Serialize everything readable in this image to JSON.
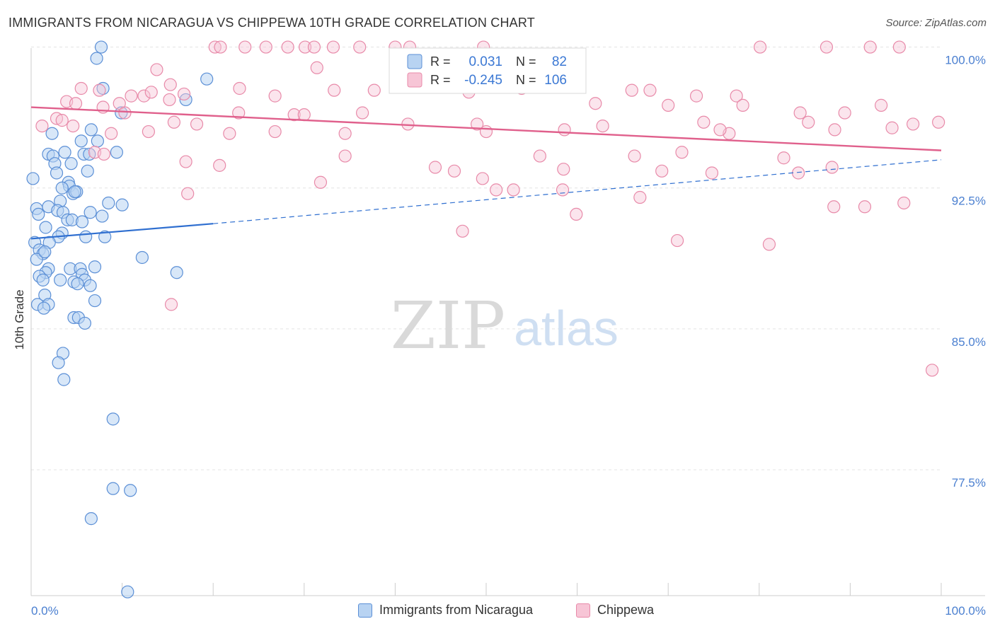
{
  "header": {
    "title": "IMMIGRANTS FROM NICARAGUA VS CHIPPEWA 10TH GRADE CORRELATION CHART",
    "source": "Source: ZipAtlas.com"
  },
  "watermark": {
    "zip": "ZIP",
    "atlas": "atlas"
  },
  "stats_legend": {
    "rows": [
      {
        "r_label": "R =",
        "r_value": "0.031",
        "n_label": "N =",
        "n_value": "82"
      },
      {
        "r_label": "R =",
        "r_value": "-0.245",
        "n_label": "N =",
        "n_value": "106"
      }
    ]
  },
  "bottom_legend": {
    "items": [
      {
        "label": "Immigrants from Nicaragua"
      },
      {
        "label": "Chippewa"
      }
    ]
  },
  "colors": {
    "blue_fill": "#b8d3f2",
    "blue_stroke": "#5b8fd6",
    "blue_line": "#2f6fd0",
    "pink_fill": "#f7c5d6",
    "pink_stroke": "#e88aa9",
    "pink_line": "#e0608c",
    "axis_text": "#4a7fd0",
    "grid": "#e4e4e4"
  },
  "chart_data": {
    "type": "scatter",
    "title": "IMMIGRANTS FROM NICARAGUA VS CHIPPEWA 10TH GRADE CORRELATION CHART",
    "xlabel": "",
    "ylabel": "10th Grade",
    "xlim": [
      0,
      100
    ],
    "ylim": [
      70.8,
      101.0
    ],
    "x_tick_labels": [
      "0.0%",
      "100.0%"
    ],
    "y_ticks": [
      100.0,
      92.5,
      85.0,
      77.5
    ],
    "y_tick_labels": [
      "100.0%",
      "92.5%",
      "85.0%",
      "77.5%"
    ],
    "grid": true,
    "legend_position": "bottom",
    "series": [
      {
        "name": "Immigrants from Nicaragua",
        "r": 0.031,
        "n": 82,
        "trend": {
          "x0": 0,
          "y0": 89.8,
          "x1": 20,
          "y1": 90.6,
          "x_end": 100,
          "y_end": 94.0
        },
        "points": [
          {
            "x": 7.7,
            "y": 100.0
          },
          {
            "x": 7.2,
            "y": 99.4
          },
          {
            "x": 19.3,
            "y": 98.3
          },
          {
            "x": 7.9,
            "y": 97.8
          },
          {
            "x": 17.0,
            "y": 97.2
          },
          {
            "x": 9.9,
            "y": 96.5
          },
          {
            "x": 2.3,
            "y": 95.4
          },
          {
            "x": 6.6,
            "y": 95.6
          },
          {
            "x": 5.5,
            "y": 95.0
          },
          {
            "x": 7.3,
            "y": 95.0
          },
          {
            "x": 1.9,
            "y": 94.3
          },
          {
            "x": 2.4,
            "y": 94.2
          },
          {
            "x": 3.7,
            "y": 94.4
          },
          {
            "x": 5.8,
            "y": 94.3
          },
          {
            "x": 6.4,
            "y": 94.3
          },
          {
            "x": 9.4,
            "y": 94.4
          },
          {
            "x": 2.6,
            "y": 93.8
          },
          {
            "x": 4.4,
            "y": 93.8
          },
          {
            "x": 2.8,
            "y": 93.3
          },
          {
            "x": 6.2,
            "y": 93.4
          },
          {
            "x": 0.2,
            "y": 93.0
          },
          {
            "x": 4.1,
            "y": 92.8
          },
          {
            "x": 4.2,
            "y": 92.6
          },
          {
            "x": 3.4,
            "y": 92.5
          },
          {
            "x": 4.6,
            "y": 92.2
          },
          {
            "x": 5.0,
            "y": 92.3
          },
          {
            "x": 3.2,
            "y": 91.8
          },
          {
            "x": 0.6,
            "y": 91.4
          },
          {
            "x": 1.9,
            "y": 91.5
          },
          {
            "x": 10.0,
            "y": 91.6
          },
          {
            "x": 8.5,
            "y": 91.7
          },
          {
            "x": 0.8,
            "y": 91.1
          },
          {
            "x": 2.9,
            "y": 91.3
          },
          {
            "x": 3.5,
            "y": 91.2
          },
          {
            "x": 6.5,
            "y": 91.2
          },
          {
            "x": 7.8,
            "y": 91.0
          },
          {
            "x": 4.0,
            "y": 90.8
          },
          {
            "x": 4.5,
            "y": 90.8
          },
          {
            "x": 5.6,
            "y": 90.7
          },
          {
            "x": 1.6,
            "y": 90.4
          },
          {
            "x": 3.4,
            "y": 90.1
          },
          {
            "x": 3.0,
            "y": 89.9
          },
          {
            "x": 0.4,
            "y": 89.6
          },
          {
            "x": 2.0,
            "y": 89.6
          },
          {
            "x": 0.9,
            "y": 89.2
          },
          {
            "x": 1.3,
            "y": 89.0
          },
          {
            "x": 12.2,
            "y": 88.8
          },
          {
            "x": 0.6,
            "y": 88.7
          },
          {
            "x": 7.0,
            "y": 88.3
          },
          {
            "x": 4.3,
            "y": 88.2
          },
          {
            "x": 5.4,
            "y": 88.2
          },
          {
            "x": 1.9,
            "y": 88.2
          },
          {
            "x": 1.6,
            "y": 88.0
          },
          {
            "x": 16.0,
            "y": 88.0
          },
          {
            "x": 0.9,
            "y": 87.8
          },
          {
            "x": 5.6,
            "y": 87.9
          },
          {
            "x": 1.3,
            "y": 87.6
          },
          {
            "x": 3.2,
            "y": 87.6
          },
          {
            "x": 4.7,
            "y": 87.5
          },
          {
            "x": 5.9,
            "y": 87.6
          },
          {
            "x": 5.1,
            "y": 87.4
          },
          {
            "x": 6.5,
            "y": 87.3
          },
          {
            "x": 1.5,
            "y": 86.8
          },
          {
            "x": 0.7,
            "y": 86.3
          },
          {
            "x": 1.9,
            "y": 86.3
          },
          {
            "x": 1.4,
            "y": 86.1
          },
          {
            "x": 4.7,
            "y": 85.6
          },
          {
            "x": 5.2,
            "y": 85.6
          },
          {
            "x": 5.9,
            "y": 85.3
          },
          {
            "x": 3.5,
            "y": 83.7
          },
          {
            "x": 3.0,
            "y": 83.2
          },
          {
            "x": 3.6,
            "y": 82.3
          },
          {
            "x": 9.0,
            "y": 80.2
          },
          {
            "x": 9.0,
            "y": 76.5
          },
          {
            "x": 10.9,
            "y": 76.4
          },
          {
            "x": 6.6,
            "y": 74.9
          },
          {
            "x": 10.6,
            "y": 71.0
          },
          {
            "x": 1.5,
            "y": 89.1
          },
          {
            "x": 4.8,
            "y": 92.3
          },
          {
            "x": 6.0,
            "y": 89.9
          },
          {
            "x": 8.1,
            "y": 89.9
          },
          {
            "x": 7.0,
            "y": 86.5
          }
        ]
      },
      {
        "name": "Chippewa",
        "r": -0.245,
        "n": 106,
        "trend": {
          "x0": 0,
          "y0": 96.8,
          "x1": 100,
          "y1": 94.5
        },
        "points": [
          {
            "x": 20.2,
            "y": 100.0
          },
          {
            "x": 20.8,
            "y": 100.0
          },
          {
            "x": 23.5,
            "y": 100.0
          },
          {
            "x": 25.8,
            "y": 100.0
          },
          {
            "x": 28.2,
            "y": 100.0
          },
          {
            "x": 30.1,
            "y": 100.0
          },
          {
            "x": 31.1,
            "y": 100.0
          },
          {
            "x": 33.2,
            "y": 100.0
          },
          {
            "x": 36.1,
            "y": 100.0
          },
          {
            "x": 40.0,
            "y": 100.0
          },
          {
            "x": 41.6,
            "y": 100.0
          },
          {
            "x": 49.7,
            "y": 100.0
          },
          {
            "x": 80.1,
            "y": 100.0
          },
          {
            "x": 87.4,
            "y": 100.0
          },
          {
            "x": 92.2,
            "y": 100.0
          },
          {
            "x": 95.4,
            "y": 100.0
          },
          {
            "x": 13.8,
            "y": 98.8
          },
          {
            "x": 31.4,
            "y": 98.9
          },
          {
            "x": 15.3,
            "y": 98.0
          },
          {
            "x": 5.5,
            "y": 97.8
          },
          {
            "x": 7.5,
            "y": 97.7
          },
          {
            "x": 22.9,
            "y": 97.8
          },
          {
            "x": 33.3,
            "y": 97.7
          },
          {
            "x": 37.7,
            "y": 97.7
          },
          {
            "x": 48.1,
            "y": 97.6
          },
          {
            "x": 53.9,
            "y": 97.8
          },
          {
            "x": 66.0,
            "y": 97.7
          },
          {
            "x": 68.0,
            "y": 97.7
          },
          {
            "x": 11.0,
            "y": 97.4
          },
          {
            "x": 12.4,
            "y": 97.4
          },
          {
            "x": 13.2,
            "y": 97.6
          },
          {
            "x": 16.8,
            "y": 97.5
          },
          {
            "x": 26.8,
            "y": 97.4
          },
          {
            "x": 73.1,
            "y": 97.4
          },
          {
            "x": 77.5,
            "y": 97.4
          },
          {
            "x": 3.9,
            "y": 97.1
          },
          {
            "x": 4.9,
            "y": 97.0
          },
          {
            "x": 9.7,
            "y": 97.0
          },
          {
            "x": 15.2,
            "y": 97.2
          },
          {
            "x": 62.0,
            "y": 97.0
          },
          {
            "x": 70.0,
            "y": 96.9
          },
          {
            "x": 78.2,
            "y": 96.9
          },
          {
            "x": 93.4,
            "y": 96.9
          },
          {
            "x": 7.9,
            "y": 96.8
          },
          {
            "x": 10.3,
            "y": 96.5
          },
          {
            "x": 28.9,
            "y": 96.4
          },
          {
            "x": 22.8,
            "y": 96.5
          },
          {
            "x": 30.0,
            "y": 96.4
          },
          {
            "x": 36.4,
            "y": 96.5
          },
          {
            "x": 84.5,
            "y": 96.5
          },
          {
            "x": 89.4,
            "y": 96.5
          },
          {
            "x": 2.8,
            "y": 96.2
          },
          {
            "x": 3.4,
            "y": 96.1
          },
          {
            "x": 1.2,
            "y": 95.8
          },
          {
            "x": 4.6,
            "y": 95.8
          },
          {
            "x": 15.7,
            "y": 96.0
          },
          {
            "x": 18.2,
            "y": 95.9
          },
          {
            "x": 41.4,
            "y": 95.9
          },
          {
            "x": 49.0,
            "y": 95.9
          },
          {
            "x": 62.8,
            "y": 95.8
          },
          {
            "x": 73.9,
            "y": 96.0
          },
          {
            "x": 85.4,
            "y": 96.0
          },
          {
            "x": 96.9,
            "y": 95.9
          },
          {
            "x": 99.7,
            "y": 96.0
          },
          {
            "x": 8.8,
            "y": 95.4
          },
          {
            "x": 12.9,
            "y": 95.5
          },
          {
            "x": 21.8,
            "y": 95.4
          },
          {
            "x": 26.8,
            "y": 95.5
          },
          {
            "x": 34.5,
            "y": 95.4
          },
          {
            "x": 50.0,
            "y": 95.5
          },
          {
            "x": 58.6,
            "y": 95.6
          },
          {
            "x": 76.7,
            "y": 95.4
          },
          {
            "x": 75.7,
            "y": 95.6
          },
          {
            "x": 88.3,
            "y": 95.6
          },
          {
            "x": 94.6,
            "y": 95.7
          },
          {
            "x": 7.0,
            "y": 94.4
          },
          {
            "x": 8.0,
            "y": 94.3
          },
          {
            "x": 34.5,
            "y": 94.2
          },
          {
            "x": 55.9,
            "y": 94.2
          },
          {
            "x": 66.3,
            "y": 94.2
          },
          {
            "x": 71.5,
            "y": 94.4
          },
          {
            "x": 82.7,
            "y": 94.1
          },
          {
            "x": 17.0,
            "y": 93.9
          },
          {
            "x": 20.7,
            "y": 93.7
          },
          {
            "x": 44.4,
            "y": 93.6
          },
          {
            "x": 46.5,
            "y": 93.4
          },
          {
            "x": 58.5,
            "y": 93.5
          },
          {
            "x": 69.3,
            "y": 93.4
          },
          {
            "x": 74.8,
            "y": 93.3
          },
          {
            "x": 84.3,
            "y": 93.3
          },
          {
            "x": 88.0,
            "y": 93.6
          },
          {
            "x": 49.6,
            "y": 93.0
          },
          {
            "x": 31.8,
            "y": 92.8
          },
          {
            "x": 53.0,
            "y": 92.4
          },
          {
            "x": 51.1,
            "y": 92.4
          },
          {
            "x": 58.4,
            "y": 92.4
          },
          {
            "x": 17.2,
            "y": 92.2
          },
          {
            "x": 66.9,
            "y": 92.0
          },
          {
            "x": 88.2,
            "y": 91.5
          },
          {
            "x": 91.6,
            "y": 91.5
          },
          {
            "x": 95.9,
            "y": 91.7
          },
          {
            "x": 59.9,
            "y": 91.1
          },
          {
            "x": 47.4,
            "y": 90.2
          },
          {
            "x": 71.0,
            "y": 89.7
          },
          {
            "x": 81.1,
            "y": 89.5
          },
          {
            "x": 15.4,
            "y": 86.3
          },
          {
            "x": 99.0,
            "y": 82.8
          }
        ]
      }
    ]
  }
}
